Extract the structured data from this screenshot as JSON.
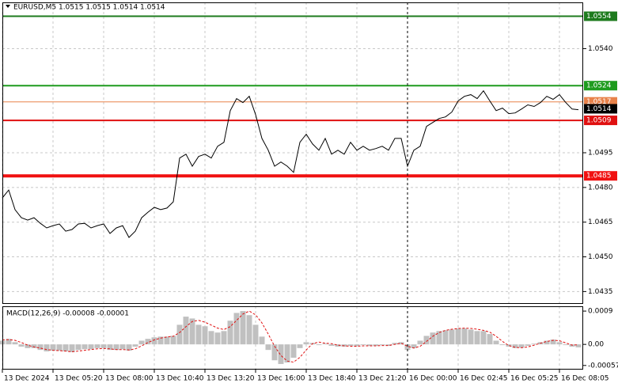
{
  "chart_data": [
    {
      "type": "line",
      "title": "EURUSD,M5  1.0515 1.0515 1.0514 1.0514",
      "color": "#000000",
      "values": [
        1.04755,
        1.04789,
        1.04704,
        1.04669,
        1.04659,
        1.04669,
        1.04645,
        1.04625,
        1.04635,
        1.04642,
        1.04611,
        1.04618,
        1.04642,
        1.04645,
        1.04625,
        1.04635,
        1.04642,
        1.04601,
        1.04625,
        1.04635,
        1.04584,
        1.04611,
        1.04669,
        1.04693,
        1.04714,
        1.04704,
        1.04711,
        1.04738,
        1.04927,
        1.04944,
        1.04892,
        1.04934,
        1.04944,
        1.04927,
        1.04978,
        1.04995,
        1.05132,
        1.05184,
        1.05167,
        1.05194,
        1.05115,
        1.05012,
        1.04961,
        1.04892,
        1.0491,
        1.04892,
        1.04865,
        1.04995,
        1.0503,
        1.04988,
        1.04961,
        1.05012,
        1.04944,
        1.04961,
        1.04944,
        1.04995,
        1.04961,
        1.04978,
        1.04961,
        1.04968,
        1.04978,
        1.04961,
        1.05012,
        1.05012,
        1.04892,
        1.04961,
        1.04978,
        1.05064,
        1.05081,
        1.05098,
        1.05105,
        1.05126,
        1.05174,
        1.05194,
        1.05201,
        1.05184,
        1.05218,
        1.05174,
        1.05132,
        1.05143,
        1.05119,
        1.05122,
        1.05139,
        1.05157,
        1.0515,
        1.05167,
        1.05194,
        1.05181,
        1.05201,
        1.05167,
        1.05139,
        1.05136
      ],
      "xlim": [
        0,
        91.75
      ],
      "xticks": [
        {
          "value": 0,
          "label": "13 Dec 2024"
        },
        {
          "value": 8,
          "label": "13 Dec 05:20"
        },
        {
          "value": 16,
          "label": "13 Dec 08:00"
        },
        {
          "value": 24,
          "label": "13 Dec 10:40"
        },
        {
          "value": 32,
          "label": "13 Dec 13:20"
        },
        {
          "value": 40,
          "label": "13 Dec 16:00"
        },
        {
          "value": 48,
          "label": "13 Dec 18:40"
        },
        {
          "value": 56,
          "label": "13 Dec 21:20"
        },
        {
          "value": 64,
          "label": "16 Dec 00:00"
        },
        {
          "value": 72,
          "label": "16 Dec 02:45"
        },
        {
          "value": 80,
          "label": "16 Dec 05:25"
        },
        {
          "value": 88,
          "label": "16 Dec 08:05"
        }
      ],
      "ylim": [
        1.043,
        1.056
      ],
      "yticks": [
        {
          "value": 1.054,
          "label": "1.0540"
        },
        {
          "value": 1.0495,
          "label": "1.0495"
        },
        {
          "value": 1.048,
          "label": "1.0480"
        },
        {
          "value": 1.0465,
          "label": "1.0465"
        },
        {
          "value": 1.045,
          "label": "1.0450"
        },
        {
          "value": 1.0435,
          "label": "1.0435"
        }
      ],
      "grid": true,
      "levels": [
        {
          "value": 1.0554,
          "color": "#1e7b1e"
        },
        {
          "value": 1.0524,
          "color": "#1e9b1e"
        },
        {
          "value": 1.0517,
          "color": "#e8824a"
        },
        {
          "value": 1.0509,
          "color": "#e01010"
        },
        {
          "value": 1.0485,
          "color": "#f01010"
        }
      ],
      "last_price": 1.0514
    },
    {
      "type": "macd",
      "title": "MACD(12,26,9) -0.00008 -0.00001",
      "xlim": [
        0,
        91.75
      ],
      "ylim": [
        -0.00066,
        0.00103
      ],
      "yticks": [
        0.0009,
        {
          "value": 0,
          "label": "0.00"
        },
        -0.00057
      ],
      "series": [
        {
          "kind": "bar",
          "color": "#c0c0c0",
          "values": [
            0.0001,
            0.00015,
            6e-05,
            -6e-05,
            -0.0001,
            -0.0001,
            -0.00015,
            -0.00019,
            -0.00017,
            -0.00017,
            -0.00019,
            -0.00021,
            -0.00015,
            -0.00013,
            -0.00013,
            -0.0001,
            -0.0001,
            -0.00015,
            -0.00015,
            -0.00013,
            -0.00017,
            -6e-05,
            0.0001,
            0.00015,
            0.00019,
            0.00021,
            0.00021,
            0.00023,
            0.00053,
            0.00075,
            0.0007,
            0.00053,
            0.00049,
            0.00036,
            0.00032,
            0.00036,
            0.00064,
            0.00085,
            0.0009,
            0.00079,
            0.00053,
            0.00021,
            -0.00015,
            -0.00043,
            -0.00053,
            -0.00049,
            -0.00036,
            -0.0001,
            6e-05,
            4e-05,
            -2e-05,
            2e-05,
            -4e-05,
            -6e-05,
            -6e-05,
            -4e-05,
            -4e-05,
            -2e-05,
            -4e-05,
            -4e-05,
            -2e-05,
            -4e-05,
            4e-05,
            6e-05,
            -0.00015,
            -0.0001,
            0.0001,
            0.00023,
            0.00032,
            0.00036,
            0.00038,
            0.0004,
            0.00043,
            0.00043,
            0.0004,
            0.00036,
            0.00036,
            0.00028,
            0.0001,
            -2e-05,
            -6e-05,
            -0.0001,
            -9e-05,
            -4e-05,
            2e-05,
            6e-05,
            0.0001,
            0.00013,
            6e-05,
            -2e-05,
            -6e-05,
            -8e-05
          ]
        },
        {
          "kind": "line",
          "color": "#e01010",
          "values": [
            0.00012,
            0.00013,
            0.00011,
            5e-05,
            -2e-05,
            -7e-05,
            -0.0001,
            -0.00014,
            -0.00016,
            -0.00017,
            -0.00018,
            -0.0002,
            -0.00018,
            -0.00016,
            -0.00014,
            -0.00012,
            -0.00011,
            -0.00012,
            -0.00014,
            -0.00014,
            -0.00015,
            -0.00012,
            -4e-05,
            5e-05,
            0.00012,
            0.00017,
            0.0002,
            0.00022,
            0.00032,
            0.00048,
            0.00062,
            0.00065,
            0.0006,
            0.00052,
            0.00044,
            0.0004,
            0.00048,
            0.00065,
            0.00082,
            0.0009,
            0.0008,
            0.00058,
            0.00028,
            -5e-05,
            -0.0003,
            -0.00045,
            -0.00048,
            -0.00035,
            -0.00015,
            2e-05,
            6e-05,
            3e-05,
            2e-05,
            -2e-05,
            -4e-05,
            -5e-05,
            -5e-05,
            -4e-05,
            -4e-05,
            -4e-05,
            -3e-05,
            -3e-05,
            0,
            3e-05,
            -5e-05,
            -0.0001,
            -5e-05,
            8e-05,
            0.00022,
            0.00032,
            0.00038,
            0.00041,
            0.00043,
            0.00044,
            0.00043,
            0.00041,
            0.00038,
            0.00033,
            0.00022,
            8e-05,
            -3e-05,
            -8e-05,
            -9e-05,
            -7e-05,
            -2e-05,
            3e-05,
            8e-05,
            0.00011,
            0.0001,
            4e-05,
            -2e-05,
            -1e-05
          ]
        }
      ]
    }
  ]
}
